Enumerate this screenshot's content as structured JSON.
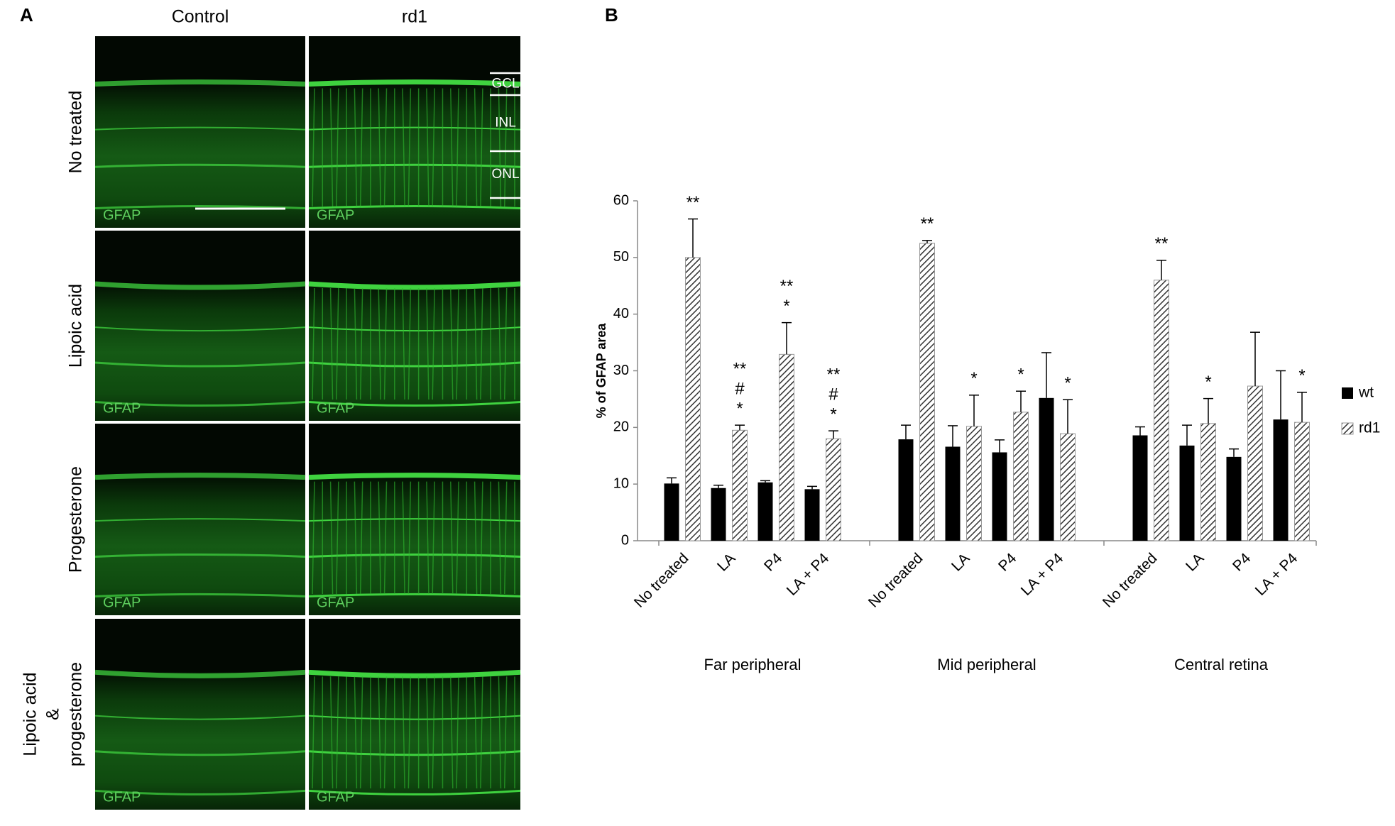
{
  "panel_a": {
    "label": "A",
    "columns": [
      "Control",
      "rd1"
    ],
    "rows": [
      [
        "No treated"
      ],
      [
        "Lipoic acid"
      ],
      [
        "Progesterone"
      ],
      [
        "Lipoic acid",
        "&",
        "progesterone"
      ]
    ],
    "stain": "GFAP",
    "layers": [
      "GCL",
      "INL",
      "ONL"
    ]
  },
  "panel_b": {
    "label": "B"
  },
  "chart_data": {
    "type": "bar",
    "ylabel": "% of GFAP area",
    "groups": [
      "Far peripheral",
      "Mid peripheral",
      "Central retina"
    ],
    "categories": [
      "No treated",
      "LA",
      "P4",
      "LA + P4",
      "No treated",
      "LA",
      "P4",
      "LA + P4",
      "No treated",
      "LA",
      "P4",
      "LA + P4"
    ],
    "series": [
      {
        "name": "wt",
        "color": "#000000",
        "pattern": "solid",
        "values": [
          10.1,
          9.3,
          10.3,
          9.1,
          17.9,
          16.6,
          15.6,
          25.2,
          18.6,
          16.8,
          14.8,
          21.4
        ],
        "errors": [
          1.0,
          0.5,
          0.3,
          0.5,
          2.5,
          3.7,
          2.2,
          8.0,
          1.5,
          3.6,
          1.4,
          8.6
        ]
      },
      {
        "name": "rd1",
        "color": "#333333",
        "pattern": "hatch",
        "values": [
          50.0,
          19.5,
          32.9,
          18.0,
          52.5,
          20.2,
          22.7,
          18.9,
          46.0,
          20.7,
          27.3,
          20.9
        ],
        "errors": [
          6.8,
          0.9,
          5.6,
          1.4,
          0.5,
          5.5,
          3.7,
          6.0,
          3.5,
          4.4,
          9.5,
          5.3
        ],
        "annotations": [
          [
            "**"
          ],
          [
            "**",
            "#",
            "*"
          ],
          [
            "**",
            "*"
          ],
          [
            "**",
            "#",
            "*"
          ],
          [
            "**"
          ],
          [
            "*"
          ],
          [
            "*"
          ],
          [
            "*"
          ],
          [
            "**"
          ],
          [
            "*"
          ],
          [],
          [
            "*"
          ]
        ]
      }
    ],
    "ylim": [
      0,
      60
    ],
    "yticks": [
      0,
      10,
      20,
      30,
      40,
      50,
      60
    ],
    "grid": false,
    "legend": "right"
  }
}
